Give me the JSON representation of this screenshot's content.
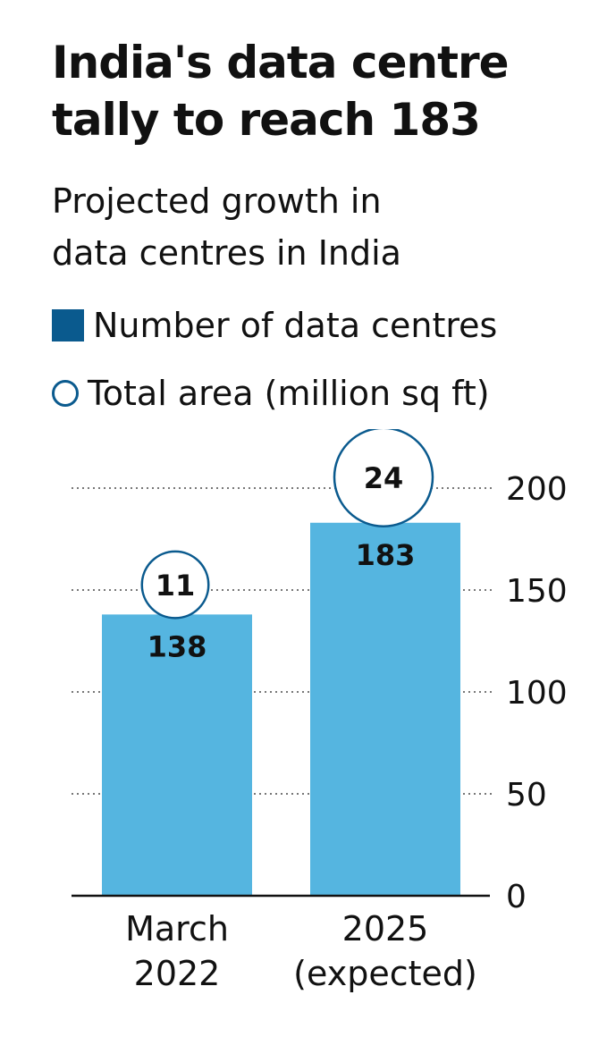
{
  "chart_data": {
    "type": "bar",
    "title_lines": [
      "India's data centre",
      "tally to reach 183"
    ],
    "subtitle_lines": [
      "Projected growth in",
      "data centres in India"
    ],
    "legend": [
      {
        "label": "Number of data centres",
        "shape": "square",
        "color": "#0a5a8e"
      },
      {
        "label": "Total area (million sq ft)",
        "shape": "circle",
        "color": "#0a5a8e"
      }
    ],
    "categories": [
      [
        "March",
        "2022"
      ],
      [
        "2025",
        "(expected)"
      ]
    ],
    "series": [
      {
        "name": "Number of data centres",
        "values": [
          138,
          183
        ],
        "color": "#55b5e0"
      },
      {
        "name": "Total area (million sq ft)",
        "values": [
          11,
          24
        ],
        "marker": "circle"
      }
    ],
    "ylim": [
      0,
      200
    ],
    "yticks": [
      0,
      50,
      100,
      150,
      200
    ],
    "grid": true,
    "axis_side": "right",
    "legend_position": "top-left"
  }
}
